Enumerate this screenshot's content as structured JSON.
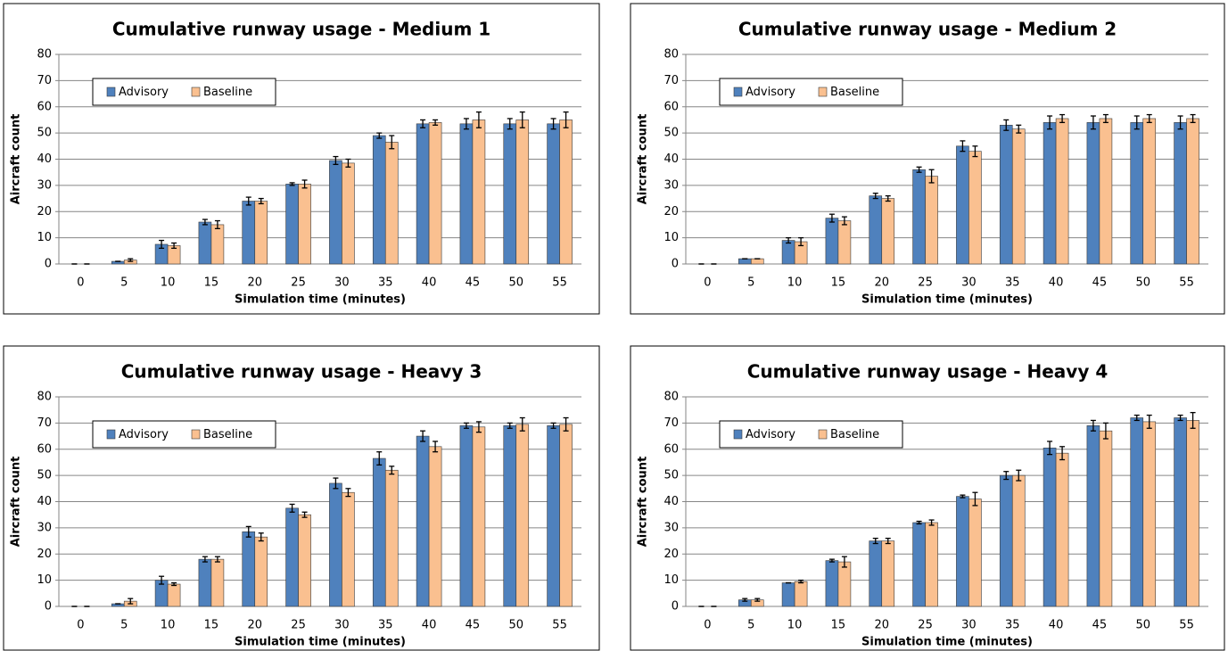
{
  "chart_data": [
    {
      "type": "bar",
      "title": "Cumulative runway usage - Medium 1",
      "x_label": "Simulation time (minutes)",
      "y_label": "Aircraft count",
      "categories": [
        0,
        5,
        10,
        15,
        20,
        25,
        30,
        35,
        40,
        45,
        50,
        55
      ],
      "series": [
        {
          "name": "Advisory",
          "color": "#4f81bd",
          "values": [
            0,
            1,
            7.5,
            16,
            24,
            30.5,
            39.5,
            49,
            53.5,
            53.5,
            53.5,
            53.5
          ],
          "errors": [
            0,
            0,
            1.5,
            1,
            1.5,
            0.5,
            1.5,
            1,
            1.5,
            2,
            2,
            2
          ]
        },
        {
          "name": "Baseline",
          "color": "#fac090",
          "values": [
            0,
            1.5,
            7,
            15,
            24,
            30.5,
            38.5,
            46.5,
            54,
            55,
            55,
            55
          ],
          "errors": [
            0,
            0.5,
            1,
            1.5,
            1,
            1.5,
            1.5,
            2.5,
            1,
            3,
            3,
            3
          ]
        }
      ],
      "ylim": [
        0,
        80
      ],
      "yticks": [
        0,
        10,
        20,
        30,
        40,
        50,
        60,
        70,
        80
      ],
      "grid": true,
      "legend": "top-left"
    },
    {
      "type": "bar",
      "title": "Cumulative runway usage - Medium 2",
      "x_label": "Simulation time (minutes)",
      "y_label": "Aircraft count",
      "categories": [
        0,
        5,
        10,
        15,
        20,
        25,
        30,
        35,
        40,
        45,
        50,
        55
      ],
      "series": [
        {
          "name": "Advisory",
          "color": "#4f81bd",
          "values": [
            0,
            2,
            9,
            17.5,
            26,
            36,
            45,
            53,
            54,
            54,
            54,
            54
          ],
          "errors": [
            0,
            0,
            1,
            1.5,
            1,
            1,
            2,
            2,
            2.5,
            2.5,
            2.5,
            2.5
          ]
        },
        {
          "name": "Baseline",
          "color": "#fac090",
          "values": [
            0,
            2,
            8.5,
            16.5,
            25,
            33.5,
            43,
            51.5,
            55.5,
            55.5,
            55.5,
            55.5
          ],
          "errors": [
            0,
            0,
            1.5,
            1.5,
            1,
            2.5,
            2,
            1.5,
            1.5,
            1.5,
            1.5,
            1.5
          ]
        }
      ],
      "ylim": [
        0,
        80
      ],
      "yticks": [
        0,
        10,
        20,
        30,
        40,
        50,
        60,
        70,
        80
      ],
      "grid": true,
      "legend": "top-left"
    },
    {
      "type": "bar",
      "title": "Cumulative runway usage - Heavy 3",
      "x_label": "Simulation time (minutes)",
      "y_label": "Aircraft count",
      "categories": [
        0,
        5,
        10,
        15,
        20,
        25,
        30,
        35,
        40,
        45,
        50,
        55
      ],
      "series": [
        {
          "name": "Advisory",
          "color": "#4f81bd",
          "values": [
            0,
            1,
            10,
            18,
            28.5,
            37.5,
            47,
            56.5,
            65,
            69,
            69,
            69
          ],
          "errors": [
            0,
            0,
            1.5,
            1,
            2,
            1.5,
            2,
            2.5,
            2,
            1,
            1,
            1
          ]
        },
        {
          "name": "Baseline",
          "color": "#fac090",
          "values": [
            0,
            2,
            8.5,
            18,
            26.5,
            35,
            43.5,
            52,
            61,
            68.5,
            69.5,
            69.5
          ],
          "errors": [
            0,
            1,
            0.5,
            1,
            1.5,
            1,
            1.5,
            1.5,
            2,
            2,
            2.5,
            2.5
          ]
        }
      ],
      "ylim": [
        0,
        80
      ],
      "yticks": [
        0,
        10,
        20,
        30,
        40,
        50,
        60,
        70,
        80
      ],
      "grid": true,
      "legend": "top-left"
    },
    {
      "type": "bar",
      "title": "Cumulative runway usage - Heavy 4",
      "x_label": "Simulation time (minutes)",
      "y_label": "Aircraft count",
      "categories": [
        0,
        5,
        10,
        15,
        20,
        25,
        30,
        35,
        40,
        45,
        50,
        55
      ],
      "series": [
        {
          "name": "Advisory",
          "color": "#4f81bd",
          "values": [
            0,
            2.5,
            9,
            17.5,
            25,
            32,
            42,
            50,
            60.5,
            69,
            72,
            72
          ],
          "errors": [
            0,
            0.5,
            0,
            0.5,
            1,
            0.5,
            0.5,
            1.5,
            2.5,
            2,
            1,
            1
          ]
        },
        {
          "name": "Baseline",
          "color": "#fac090",
          "values": [
            0,
            2.5,
            9.5,
            17,
            25,
            32,
            41,
            50,
            58.5,
            67,
            70.5,
            71
          ],
          "errors": [
            0,
            0.5,
            0.5,
            2,
            1,
            1,
            2.5,
            2,
            2.5,
            3,
            2.5,
            3
          ]
        }
      ],
      "ylim": [
        0,
        80
      ],
      "yticks": [
        0,
        10,
        20,
        30,
        40,
        50,
        60,
        70,
        80
      ],
      "grid": true,
      "legend": "top-left"
    }
  ]
}
